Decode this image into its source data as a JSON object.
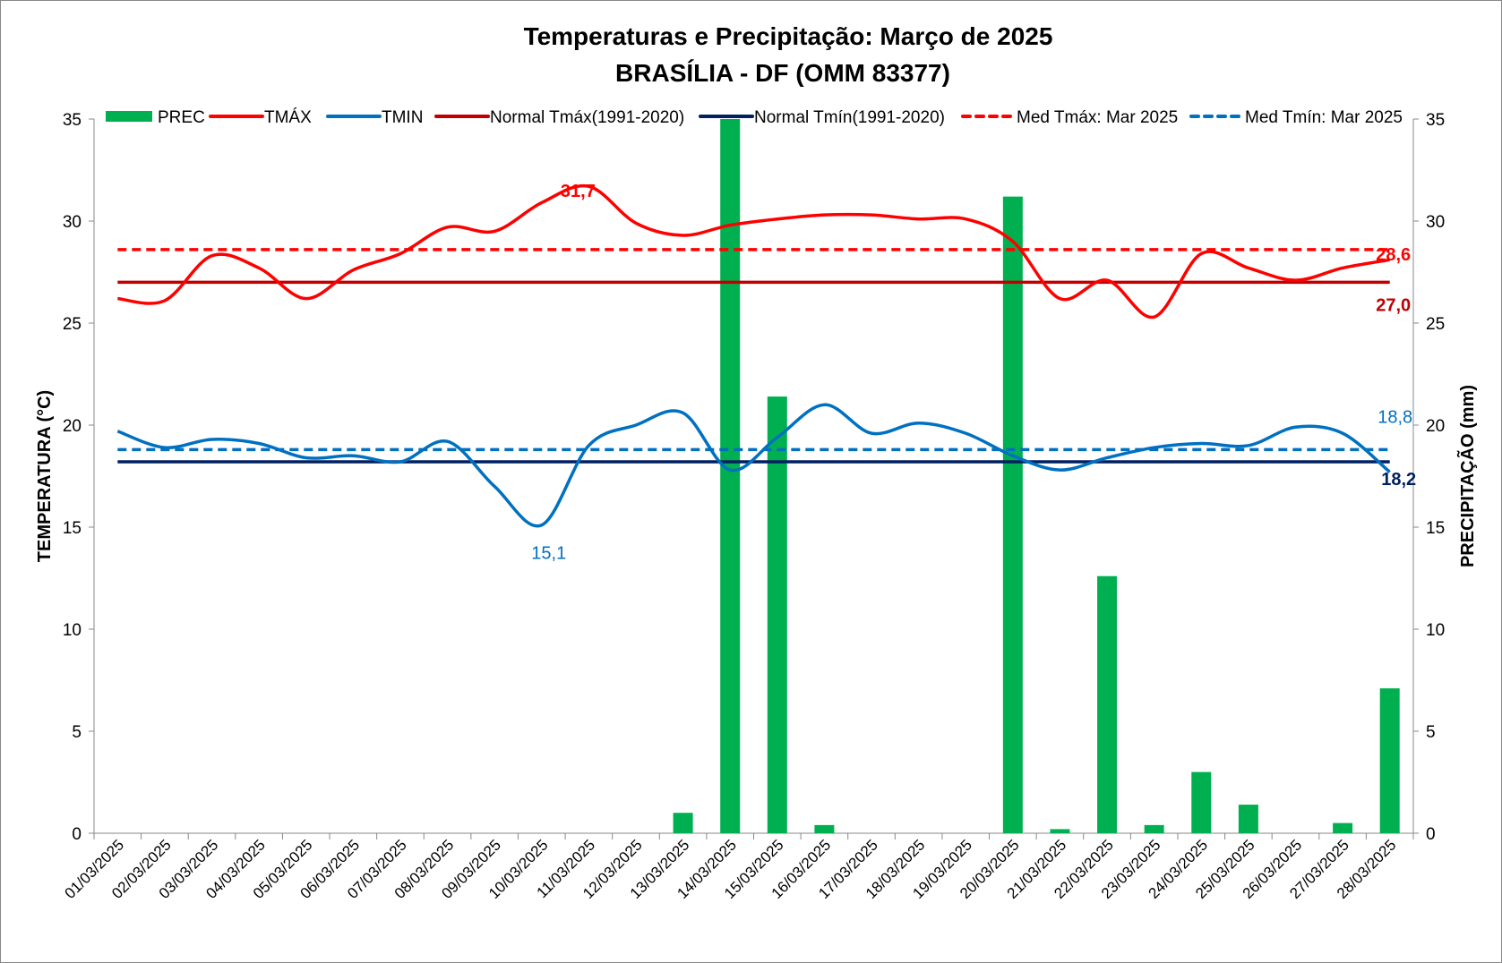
{
  "chart_data": {
    "type": "bar+line",
    "title": "Temperaturas e Precipitação: Março de 2025",
    "subtitle": "BRASÍLIA - DF (OMM 83377)",
    "ylabel": "TEMPERATURA  (°C)",
    "y2label": "PRECIPITAÇÃO  (mm)",
    "ylim": [
      0,
      35
    ],
    "y2lim": [
      0,
      35
    ],
    "yticks": [
      0,
      5,
      10,
      15,
      20,
      25,
      30,
      35
    ],
    "grid": false,
    "legend_position": "top",
    "categories": [
      "01/03/2025",
      "02/03/2025",
      "03/03/2025",
      "04/03/2025",
      "05/03/2025",
      "06/03/2025",
      "07/03/2025",
      "08/03/2025",
      "09/03/2025",
      "10/03/2025",
      "11/03/2025",
      "12/03/2025",
      "13/03/2025",
      "14/03/2025",
      "15/03/2025",
      "16/03/2025",
      "17/03/2025",
      "18/03/2025",
      "19/03/2025",
      "20/03/2025",
      "21/03/2025",
      "22/03/2025",
      "23/03/2025",
      "24/03/2025",
      "25/03/2025",
      "26/03/2025",
      "27/03/2025",
      "28/03/2025"
    ],
    "series": [
      {
        "name": "PREC",
        "kind": "bar",
        "axis": "right",
        "color": "#00b050",
        "values": [
          0,
          0,
          0,
          0,
          0,
          0,
          0,
          0,
          0,
          0,
          0,
          0,
          1.0,
          35.0,
          21.4,
          0.4,
          0,
          0,
          0,
          31.2,
          0.2,
          12.6,
          0.4,
          3.0,
          1.4,
          0,
          0.5,
          7.1
        ]
      },
      {
        "name": "TMÁX",
        "kind": "line",
        "color": "#ff0000",
        "values": [
          26.2,
          26.1,
          28.3,
          27.7,
          26.2,
          27.6,
          28.4,
          29.7,
          29.5,
          30.9,
          31.7,
          29.9,
          29.3,
          29.8,
          30.1,
          30.3,
          30.3,
          30.1,
          30.1,
          29.0,
          26.2,
          27.1,
          25.3,
          28.4,
          27.7,
          27.1,
          27.7,
          28.1
        ]
      },
      {
        "name": "TMIN",
        "kind": "line",
        "color": "#0070c0",
        "values": [
          19.7,
          18.9,
          19.3,
          19.1,
          18.4,
          18.5,
          18.2,
          19.2,
          17.0,
          15.1,
          19.0,
          20.0,
          20.6,
          17.8,
          19.4,
          21.0,
          19.6,
          20.1,
          19.6,
          18.5,
          17.8,
          18.4,
          18.9,
          19.1,
          19.0,
          19.9,
          19.6,
          17.7
        ]
      },
      {
        "name": "Normal Tmáx(1991-2020)",
        "kind": "hline",
        "color": "#c00000",
        "value": 27.0
      },
      {
        "name": "Normal Tmín(1991-2020)",
        "kind": "hline",
        "color": "#002060",
        "value": 18.2
      },
      {
        "name": "Med Tmáx: Mar 2025",
        "kind": "dashed",
        "color": "#ff0000",
        "value": 28.6
      },
      {
        "name": "Med Tmín: Mar 2025",
        "kind": "dashed",
        "color": "#0070c0",
        "value": 18.8
      }
    ],
    "annotations": [
      {
        "text": "31,7",
        "color": "#ff0000",
        "bold": true
      },
      {
        "text": "15,1",
        "color": "#0070c0",
        "bold": false
      },
      {
        "text": "28,6",
        "color": "#ff0000",
        "bold": true
      },
      {
        "text": "27,0",
        "color": "#c00000",
        "bold": true
      },
      {
        "text": "18,8",
        "color": "#0070c0",
        "bold": false
      },
      {
        "text": "18,2",
        "color": "#002060",
        "bold": true
      }
    ]
  }
}
